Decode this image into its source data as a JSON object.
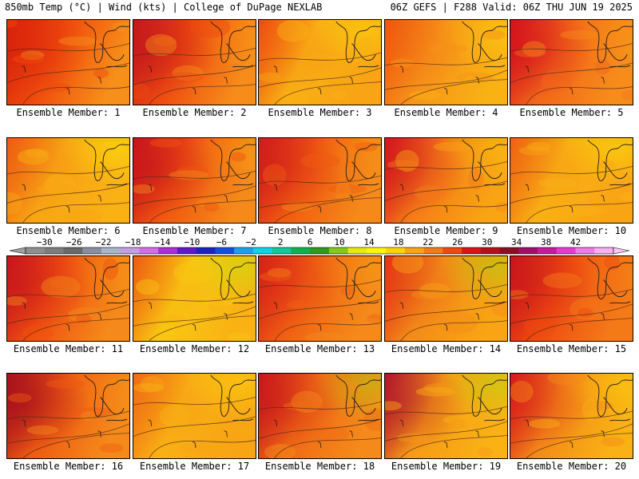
{
  "header": {
    "left": "850mb Temp (°C) | Wind (kts) | College of DuPage NEXLAB",
    "right": "06Z GEFS | F288 Valid: 06Z THU JUN 19 2025"
  },
  "panels": [
    {
      "member": "1",
      "label": "Ensemble Member: 1",
      "base": "#ef4a0c",
      "hot": "#d8200c",
      "warm": "#f7901a",
      "cool": "#fcd30c",
      "hotStr": 0.55,
      "coolStr": 0.0
    },
    {
      "member": "2",
      "label": "Ensemble Member: 2",
      "base": "#ee4a10",
      "hot": "#c4181c",
      "warm": "#f78c1a",
      "cool": "#fbd30c",
      "hotStr": 0.75,
      "coolStr": 0.15
    },
    {
      "member": "3",
      "label": "Ensemble Member: 3",
      "base": "#f9b114",
      "hot": "#ee4a10",
      "warm": "#f8a414",
      "cool": "#fbe20a",
      "hotStr": 0.25,
      "coolStr": 0.45
    },
    {
      "member": "4",
      "label": "Ensemble Member: 4",
      "base": "#f69219",
      "hot": "#ee5510",
      "warm": "#f9b114",
      "cool": "#fde10a",
      "hotStr": 0.3,
      "coolStr": 0.35
    },
    {
      "member": "5",
      "label": "Ensemble Member: 5",
      "base": "#f2651a",
      "hot": "#d3121c",
      "warm": "#f78c1a",
      "cool": "#fad30c",
      "hotStr": 0.7,
      "coolStr": 0.15
    },
    {
      "member": "6",
      "label": "Ensemble Member: 6",
      "base": "#f8a514",
      "hot": "#ee5a12",
      "warm": "#f9b114",
      "cool": "#fce30c",
      "hotStr": 0.25,
      "coolStr": 0.55
    },
    {
      "member": "7",
      "label": "Ensemble Member: 7",
      "base": "#ef5410",
      "hot": "#c8141c",
      "warm": "#f58a1a",
      "cool": "#fbd30c",
      "hotStr": 0.75,
      "coolStr": 0.2
    },
    {
      "member": "8",
      "label": "Ensemble Member: 8",
      "base": "#f05a10",
      "hot": "#cf1a1c",
      "warm": "#f58a1a",
      "cool": "#fad30c",
      "hotStr": 0.6,
      "coolStr": 0.15
    },
    {
      "member": "9",
      "label": "Ensemble Member: 9",
      "base": "#f57b18",
      "hot": "#d0151c",
      "warm": "#f8a414",
      "cool": "#fce30a",
      "hotStr": 0.55,
      "coolStr": 0.3
    },
    {
      "member": "10",
      "label": "Ensemble Member: 10",
      "base": "#f9b114",
      "hot": "#ef6012",
      "warm": "#f9a414",
      "cool": "#fce80a",
      "hotStr": 0.25,
      "coolStr": 0.45
    },
    {
      "member": "11",
      "label": "Ensemble Member: 11",
      "base": "#ef5010",
      "hot": "#c8141c",
      "warm": "#f58a1a",
      "cool": "#fad30c",
      "hotStr": 0.6,
      "coolStr": 0.15
    },
    {
      "member": "12",
      "label": "Ensemble Member: 12",
      "base": "#f9c812",
      "hot": "#ee5a12",
      "warm": "#f9b114",
      "cool": "#c8e00a",
      "hotStr": 0.2,
      "coolStr": 0.55
    },
    {
      "member": "13",
      "label": "Ensemble Member: 13",
      "base": "#f06012",
      "hot": "#d62018",
      "warm": "#f58a1a",
      "cool": "#fad30c",
      "hotStr": 0.45,
      "coolStr": 0.2
    },
    {
      "member": "14",
      "label": "Ensemble Member: 14",
      "base": "#f38c18",
      "hot": "#e23416",
      "warm": "#f8a414",
      "cool": "#a8d40e",
      "hotStr": 0.4,
      "coolStr": 0.5
    },
    {
      "member": "15",
      "label": "Ensemble Member: 15",
      "base": "#ee4a10",
      "hot": "#c8141c",
      "warm": "#f47a18",
      "cool": "#f9b114",
      "hotStr": 0.55,
      "coolStr": 0.15
    },
    {
      "member": "16",
      "label": "Ensemble Member: 16",
      "base": "#ef5a12",
      "hot": "#a8101c",
      "warm": "#f58a1a",
      "cool": "#fad30c",
      "hotStr": 0.8,
      "coolStr": 0.1
    },
    {
      "member": "17",
      "label": "Ensemble Member: 17",
      "base": "#f9b114",
      "hot": "#f06a14",
      "warm": "#f8a414",
      "cool": "#fce30a",
      "hotStr": 0.3,
      "coolStr": 0.4
    },
    {
      "member": "18",
      "label": "Ensemble Member: 18",
      "base": "#f06a14",
      "hot": "#c8141c",
      "warm": "#f58a1a",
      "cool": "#a8d40e",
      "hotStr": 0.6,
      "coolStr": 0.45
    },
    {
      "member": "19",
      "label": "Ensemble Member: 19",
      "base": "#f79a16",
      "hot": "#b0142c",
      "warm": "#f9b114",
      "cool": "#b4d80e",
      "hotStr": 0.55,
      "coolStr": 0.5
    },
    {
      "member": "20",
      "label": "Ensemble Member: 20",
      "base": "#f48a18",
      "hot": "#d6161a",
      "warm": "#f9b114",
      "cool": "#fce30a",
      "hotStr": 0.5,
      "coolStr": 0.35
    }
  ],
  "colorbar": {
    "ticks": [
      "−30",
      "−26",
      "−22",
      "−18",
      "−14",
      "−10",
      "−6",
      "−2",
      "2",
      "6",
      "10",
      "14",
      "18",
      "22",
      "26",
      "30",
      "34",
      "38",
      "42"
    ],
    "colors": [
      "#8f8f8f",
      "#7d7d7d",
      "#696969",
      "#8a8fa0",
      "#a9b5c8",
      "#c39fe0",
      "#d26ee6",
      "#b02ed6",
      "#5f19c8",
      "#1d22c0",
      "#1450e0",
      "#1ca0ee",
      "#10d2e6",
      "#12c79a",
      "#10b050",
      "#2f9b1a",
      "#86c818",
      "#e6ea12",
      "#fcf512",
      "#fbd30c",
      "#f8a414",
      "#f47a18",
      "#ee4a10",
      "#d6161a",
      "#b4101a",
      "#8c0e22",
      "#a0106a",
      "#c81a9c",
      "#e83ad0",
      "#f07ae6",
      "#f8b0ee"
    ]
  }
}
